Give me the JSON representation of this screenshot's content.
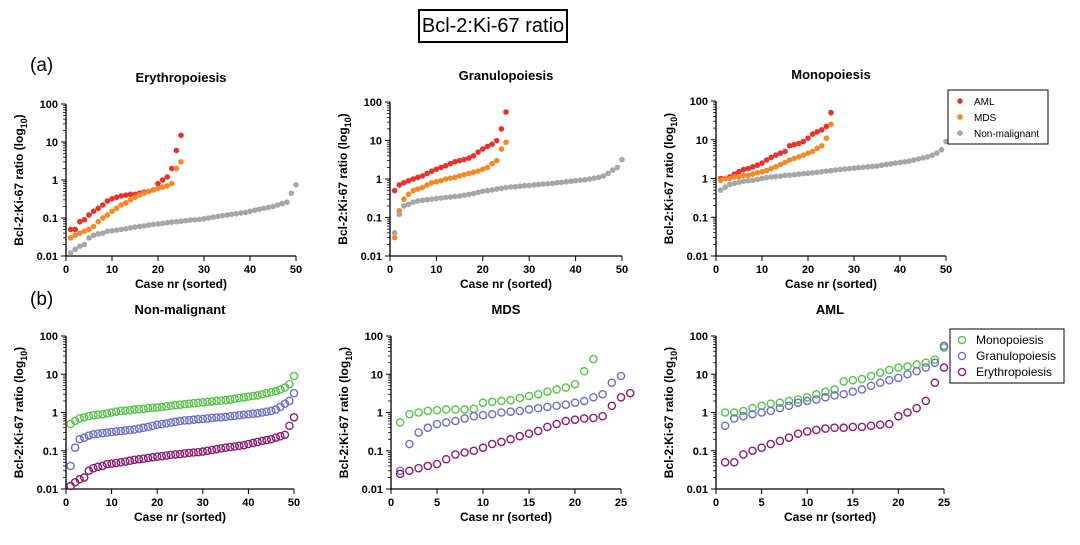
{
  "figure": {
    "title": "Bcl-2:Ki-67 ratio",
    "panel_labels": [
      "(a)",
      "(b)"
    ]
  },
  "chart_data": [
    {
      "type": "scatter",
      "title": "Erythropoiesis",
      "xlabel": "Case nr (sorted)",
      "ylabel": "Bcl-2:Ki-67 ratio (log10)",
      "yscale": "log",
      "xlim": [
        0,
        50
      ],
      "ylim": [
        0.01,
        100
      ],
      "xticks": [
        0,
        10,
        20,
        30,
        40,
        50
      ],
      "yticks": [
        0.01,
        0.1,
        1,
        10,
        100
      ],
      "ytick_labels": [
        "0.01",
        "0.1",
        "1",
        "10",
        "100"
      ],
      "marker": "filled",
      "series": [
        {
          "name": "AML",
          "color": "#e8322e",
          "values": [
            0.05,
            0.05,
            0.08,
            0.09,
            0.12,
            0.15,
            0.18,
            0.22,
            0.28,
            0.32,
            0.35,
            0.38,
            0.4,
            0.42,
            0.42,
            0.45,
            0.48,
            0.5,
            0.55,
            0.8,
            1.0,
            1.2,
            2.0,
            6.0,
            15.0
          ]
        },
        {
          "name": "MDS",
          "color": "#f5892a",
          "values": [
            0.03,
            0.035,
            0.04,
            0.045,
            0.05,
            0.06,
            0.08,
            0.1,
            0.12,
            0.15,
            0.18,
            0.22,
            0.25,
            0.3,
            0.35,
            0.4,
            0.45,
            0.5,
            0.55,
            0.6,
            0.65,
            0.7,
            0.8,
            2.0,
            3.0
          ]
        },
        {
          "name": "Non-malignant",
          "color": "#a6a6a6",
          "values": [
            0.012,
            0.015,
            0.018,
            0.02,
            0.03,
            0.035,
            0.038,
            0.04,
            0.045,
            0.046,
            0.048,
            0.05,
            0.052,
            0.055,
            0.058,
            0.06,
            0.062,
            0.065,
            0.068,
            0.07,
            0.072,
            0.075,
            0.078,
            0.08,
            0.082,
            0.085,
            0.088,
            0.09,
            0.092,
            0.095,
            0.1,
            0.105,
            0.11,
            0.115,
            0.12,
            0.125,
            0.13,
            0.135,
            0.14,
            0.15,
            0.16,
            0.17,
            0.18,
            0.19,
            0.2,
            0.22,
            0.24,
            0.26,
            0.45,
            0.75
          ]
        }
      ]
    },
    {
      "type": "scatter",
      "title": "Granulopoiesis",
      "xlabel": "Case nr (sorted)",
      "ylabel": "Bcl-2:Ki-67 ratio (log10)",
      "yscale": "log",
      "xlim": [
        0,
        50
      ],
      "ylim": [
        0.01,
        100
      ],
      "xticks": [
        0,
        10,
        20,
        30,
        40,
        50
      ],
      "yticks": [
        0.01,
        0.1,
        1,
        10,
        100
      ],
      "ytick_labels": [
        "0.01",
        "0.1",
        "1",
        "10",
        "100"
      ],
      "marker": "filled",
      "series": [
        {
          "name": "AML",
          "color": "#e8322e",
          "values": [
            0.5,
            0.7,
            0.8,
            0.9,
            1.0,
            1.1,
            1.2,
            1.4,
            1.6,
            1.8,
            2.0,
            2.2,
            2.5,
            2.8,
            3.0,
            3.2,
            3.5,
            4.0,
            5.0,
            6.0,
            7.0,
            8.0,
            10.0,
            20.0,
            55.0
          ]
        },
        {
          "name": "MDS",
          "color": "#f5892a",
          "values": [
            0.03,
            0.15,
            0.3,
            0.4,
            0.5,
            0.55,
            0.6,
            0.7,
            0.8,
            0.85,
            0.9,
            1.0,
            1.05,
            1.1,
            1.2,
            1.3,
            1.4,
            1.5,
            1.6,
            1.8,
            2.0,
            2.5,
            3.0,
            6.0,
            9.0
          ]
        },
        {
          "name": "Non-malignant",
          "color": "#a6a6a6",
          "values": [
            0.04,
            0.12,
            0.2,
            0.22,
            0.25,
            0.27,
            0.28,
            0.29,
            0.3,
            0.31,
            0.32,
            0.33,
            0.34,
            0.35,
            0.36,
            0.38,
            0.4,
            0.42,
            0.45,
            0.48,
            0.5,
            0.52,
            0.55,
            0.57,
            0.6,
            0.62,
            0.63,
            0.65,
            0.67,
            0.68,
            0.7,
            0.72,
            0.74,
            0.75,
            0.77,
            0.8,
            0.82,
            0.85,
            0.88,
            0.9,
            0.93,
            0.95,
            1.0,
            1.05,
            1.1,
            1.2,
            1.4,
            1.7,
            2.0,
            3.2
          ]
        }
      ]
    },
    {
      "type": "scatter",
      "title": "Monopoiesis",
      "xlabel": "Case nr (sorted)",
      "ylabel": "Bcl-2:Ki-67 ratio (log10)",
      "yscale": "log",
      "xlim": [
        0,
        50
      ],
      "ylim": [
        0.01,
        100
      ],
      "xticks": [
        0,
        10,
        20,
        30,
        40,
        50
      ],
      "yticks": [
        0.01,
        0.1,
        1,
        10,
        100
      ],
      "ytick_labels": [
        "0.01",
        "0.1",
        "1",
        "10",
        "100"
      ],
      "marker": "filled",
      "series": [
        {
          "name": "AML",
          "color": "#e8322e",
          "values": [
            1.0,
            1.0,
            1.1,
            1.3,
            1.5,
            1.7,
            1.8,
            2.0,
            2.2,
            2.5,
            3.0,
            3.5,
            4.0,
            4.5,
            5.0,
            7.0,
            7.5,
            8.0,
            9.0,
            11.0,
            14.0,
            16.0,
            18.0,
            22.0,
            50.0
          ]
        },
        {
          "name": "MDS",
          "color": "#f5892a",
          "values": [
            0.9,
            1.0,
            1.0,
            1.1,
            1.1,
            1.2,
            1.2,
            1.3,
            1.4,
            1.5,
            1.6,
            1.8,
            2.0,
            2.3,
            2.6,
            3.0,
            3.3,
            3.6,
            4.0,
            4.5,
            5.0,
            6.0,
            7.0,
            11.0,
            25.0
          ]
        },
        {
          "name": "Non-malignant",
          "color": "#a6a6a6",
          "values": [
            0.5,
            0.6,
            0.7,
            0.75,
            0.8,
            0.85,
            0.88,
            0.9,
            0.95,
            1.0,
            1.05,
            1.1,
            1.12,
            1.15,
            1.2,
            1.22,
            1.25,
            1.3,
            1.33,
            1.36,
            1.4,
            1.45,
            1.5,
            1.55,
            1.6,
            1.65,
            1.7,
            1.75,
            1.8,
            1.85,
            1.9,
            1.95,
            2.0,
            2.05,
            2.1,
            2.2,
            2.3,
            2.4,
            2.5,
            2.6,
            2.7,
            2.8,
            3.0,
            3.2,
            3.4,
            3.6,
            4.0,
            4.5,
            5.5,
            9.0
          ]
        }
      ]
    },
    {
      "type": "scatter",
      "title": "Non-malignant",
      "xlabel": "Case nr (sorted)",
      "ylabel": "Bcl-2:Ki-67 ratio (log10)",
      "yscale": "log",
      "xlim": [
        0,
        50
      ],
      "ylim": [
        0.01,
        100
      ],
      "xticks": [
        0,
        10,
        20,
        30,
        40,
        50
      ],
      "yticks": [
        0.01,
        0.1,
        1,
        10,
        100
      ],
      "ytick_labels": [
        "0.01",
        "0.1",
        "1",
        "10",
        "100"
      ],
      "marker": "open",
      "series": [
        {
          "name": "Monopoiesis",
          "color": "#57c24a",
          "values": [
            0.5,
            0.6,
            0.7,
            0.75,
            0.8,
            0.85,
            0.88,
            0.9,
            0.95,
            1.0,
            1.05,
            1.1,
            1.12,
            1.15,
            1.2,
            1.22,
            1.25,
            1.3,
            1.33,
            1.36,
            1.4,
            1.45,
            1.5,
            1.55,
            1.6,
            1.65,
            1.7,
            1.75,
            1.8,
            1.85,
            1.9,
            1.95,
            2.0,
            2.05,
            2.1,
            2.2,
            2.3,
            2.4,
            2.5,
            2.6,
            2.7,
            2.8,
            3.0,
            3.2,
            3.4,
            3.6,
            4.0,
            4.5,
            5.5,
            9.0
          ]
        },
        {
          "name": "Granulopoiesis",
          "color": "#6c6fc4",
          "values": [
            0.04,
            0.12,
            0.2,
            0.22,
            0.25,
            0.27,
            0.28,
            0.29,
            0.3,
            0.31,
            0.32,
            0.33,
            0.34,
            0.35,
            0.36,
            0.38,
            0.4,
            0.42,
            0.45,
            0.48,
            0.5,
            0.52,
            0.55,
            0.57,
            0.6,
            0.62,
            0.63,
            0.65,
            0.67,
            0.68,
            0.7,
            0.72,
            0.74,
            0.75,
            0.77,
            0.8,
            0.82,
            0.85,
            0.88,
            0.9,
            0.93,
            0.95,
            1.0,
            1.05,
            1.1,
            1.2,
            1.4,
            1.7,
            2.0,
            3.2
          ]
        },
        {
          "name": "Erythropoiesis",
          "color": "#8a1d72",
          "values": [
            0.012,
            0.015,
            0.018,
            0.02,
            0.03,
            0.035,
            0.038,
            0.04,
            0.045,
            0.046,
            0.048,
            0.05,
            0.052,
            0.055,
            0.058,
            0.06,
            0.062,
            0.065,
            0.068,
            0.07,
            0.072,
            0.075,
            0.078,
            0.08,
            0.082,
            0.085,
            0.088,
            0.09,
            0.092,
            0.095,
            0.1,
            0.105,
            0.11,
            0.115,
            0.12,
            0.125,
            0.13,
            0.135,
            0.14,
            0.15,
            0.16,
            0.17,
            0.18,
            0.19,
            0.2,
            0.22,
            0.24,
            0.26,
            0.45,
            0.75
          ]
        }
      ]
    },
    {
      "type": "scatter",
      "title": "MDS",
      "xlabel": "Case nr (sorted)",
      "ylabel": "Bcl-2:Ki-67 ratio (log10)",
      "yscale": "log",
      "xlim": [
        0,
        25
      ],
      "ylim": [
        0.01,
        100
      ],
      "xticks": [
        0,
        5,
        10,
        15,
        20,
        25
      ],
      "yticks": [
        0.01,
        0.1,
        1,
        10,
        100
      ],
      "ytick_labels": [
        "0.01",
        "0.1",
        "1",
        "10",
        "100"
      ],
      "marker": "open",
      "series": [
        {
          "name": "Monopoiesis",
          "color": "#57c24a",
          "values": [
            0.55,
            0.9,
            1.0,
            1.1,
            1.15,
            1.2,
            1.2,
            1.2,
            1.25,
            1.8,
            1.9,
            2.0,
            2.1,
            2.4,
            2.7,
            3.0,
            3.5,
            4.0,
            4.5,
            5.5,
            12.0,
            25.0
          ]
        },
        {
          "name": "Granulopoiesis",
          "color": "#6c6fc4",
          "values": [
            0.03,
            0.15,
            0.3,
            0.4,
            0.5,
            0.55,
            0.6,
            0.7,
            0.8,
            0.85,
            0.9,
            1.0,
            1.05,
            1.1,
            1.2,
            1.3,
            1.4,
            1.5,
            1.6,
            1.8,
            2.0,
            2.5,
            3.0,
            6.0,
            9.0
          ]
        },
        {
          "name": "Erythropoiesis",
          "color": "#8a1d72",
          "values": [
            0.025,
            0.03,
            0.035,
            0.04,
            0.045,
            0.06,
            0.08,
            0.09,
            0.1,
            0.12,
            0.15,
            0.17,
            0.2,
            0.24,
            0.28,
            0.33,
            0.42,
            0.5,
            0.6,
            0.65,
            0.7,
            0.72,
            0.8,
            1.5,
            2.5,
            3.2
          ]
        }
      ]
    },
    {
      "type": "scatter",
      "title": "AML",
      "xlabel": "Case nr (sorted)",
      "ylabel": "Bcl-2:Ki-67 ratio (log10)",
      "yscale": "log",
      "xlim": [
        0,
        25
      ],
      "ylim": [
        0.01,
        100
      ],
      "xticks": [
        0,
        5,
        10,
        15,
        20,
        25
      ],
      "yticks": [
        0.01,
        0.1,
        1,
        10,
        100
      ],
      "ytick_labels": [
        "0.01",
        "0.1",
        "1",
        "10",
        "100"
      ],
      "marker": "open",
      "series": [
        {
          "name": "Monopoiesis",
          "color": "#57c24a",
          "values": [
            1.0,
            1.0,
            1.1,
            1.3,
            1.5,
            1.7,
            1.8,
            2.0,
            2.2,
            2.5,
            3.0,
            3.5,
            4.0,
            6.5,
            7.0,
            7.5,
            9.0,
            11.0,
            13.0,
            15.0,
            16.0,
            18.0,
            20.0,
            24.0,
            50.0
          ]
        },
        {
          "name": "Granulopoiesis",
          "color": "#6c6fc4",
          "values": [
            0.45,
            0.7,
            0.8,
            0.9,
            1.0,
            1.1,
            1.3,
            1.5,
            1.8,
            2.0,
            2.2,
            2.5,
            2.8,
            3.0,
            3.5,
            4.0,
            5.0,
            6.0,
            7.0,
            8.0,
            10.0,
            12.0,
            15.0,
            20.0,
            55.0
          ]
        },
        {
          "name": "Erythropoiesis",
          "color": "#8a1d72",
          "values": [
            0.05,
            0.05,
            0.08,
            0.1,
            0.12,
            0.15,
            0.18,
            0.22,
            0.28,
            0.32,
            0.35,
            0.38,
            0.4,
            0.4,
            0.42,
            0.42,
            0.45,
            0.48,
            0.5,
            0.8,
            1.0,
            1.3,
            2.0,
            6.0,
            15.0
          ]
        }
      ]
    }
  ],
  "legends": [
    {
      "marker": "filled",
      "entries": [
        {
          "label": "AML",
          "color": "#e8322e"
        },
        {
          "label": "MDS",
          "color": "#f5892a"
        },
        {
          "label": "Non-malignant",
          "color": "#a6a6a6"
        }
      ]
    },
    {
      "marker": "open",
      "entries": [
        {
          "label": "Monopoiesis",
          "color": "#57c24a"
        },
        {
          "label": "Granulopoiesis",
          "color": "#6c6fc4"
        },
        {
          "label": "Erythropoiesis",
          "color": "#8a1d72"
        }
      ]
    }
  ]
}
